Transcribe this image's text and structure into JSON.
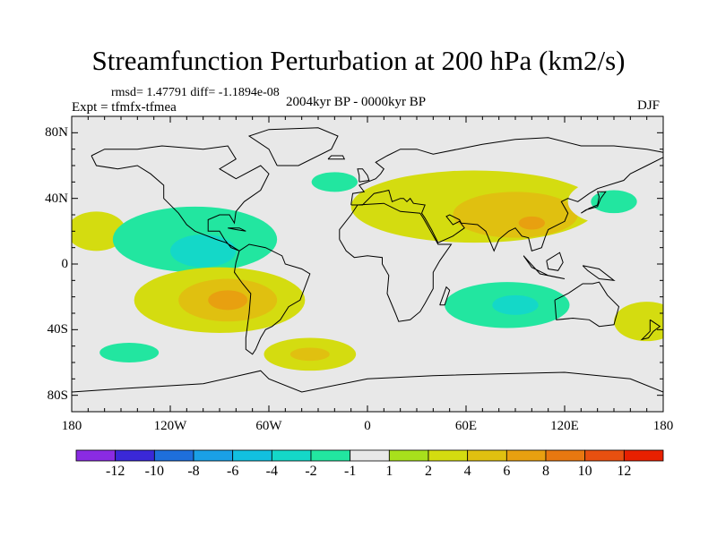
{
  "title": "Streamfunction Perturbation at 200 hPa (km2/s)",
  "stats_line": "rmsd= 1.47791 diff= -1.1894e-08",
  "expt_line": "Expt = tfmfx-tfmea",
  "period_line": "2004kyr BP - 0000kyr BP",
  "season": "DJF",
  "axes": {
    "x_ticks": [
      {
        "value": -180,
        "label": "180"
      },
      {
        "value": -120,
        "label": "120W"
      },
      {
        "value": -60,
        "label": "60W"
      },
      {
        "value": 0,
        "label": "0"
      },
      {
        "value": 60,
        "label": "60E"
      },
      {
        "value": 120,
        "label": "120E"
      },
      {
        "value": 180,
        "label": "180"
      }
    ],
    "y_ticks": [
      {
        "value": 80,
        "label": "80N"
      },
      {
        "value": 40,
        "label": "40N"
      },
      {
        "value": 0,
        "label": "0"
      },
      {
        "value": -40,
        "label": "40S"
      },
      {
        "value": -80,
        "label": "80S"
      }
    ],
    "lon_range": [
      -180,
      180
    ],
    "lat_range": [
      -90,
      90
    ]
  },
  "colorbar": {
    "colors": [
      "#8a2be2",
      "#3a28d8",
      "#1e6fdc",
      "#1aa0e6",
      "#12c0e0",
      "#14d8c8",
      "#22e6a0",
      "#e8e8e8",
      "#a8e01c",
      "#d4dc10",
      "#e0c010",
      "#e8a010",
      "#e87810",
      "#e85010",
      "#e82000"
    ],
    "labels": [
      "-12",
      "-10",
      "-8",
      "-6",
      "-4",
      "-2",
      "-1",
      "1",
      "2",
      "4",
      "6",
      "8",
      "10",
      "12"
    ]
  },
  "chart_data": {
    "type": "heatmap",
    "map_type": "global contour map, cylindrical equidistant projection, with continental outlines",
    "title": "Streamfunction Perturbation at 200 hPa (km2/s)",
    "variable": "Streamfunction Perturbation at 200 hPa",
    "units": "km2/s",
    "season": "DJF",
    "period": "2004kyr BP - 0000kyr BP",
    "experiment": "tfmfx-tfmea",
    "rmsd": 1.47791,
    "diff": -1.1894e-08,
    "contour_levels": [
      -12,
      -10,
      -8,
      -6,
      -4,
      -2,
      -1,
      1,
      2,
      4,
      6,
      8,
      10,
      12
    ],
    "x_range_deg": [
      -180,
      180
    ],
    "y_range_deg": [
      -90,
      90
    ],
    "anomaly_centers": [
      {
        "lon": -165,
        "lat": 20,
        "rx": 18,
        "ry": 12,
        "value": 2
      },
      {
        "lon": -105,
        "lat": 15,
        "rx": 50,
        "ry": 20,
        "value": -2
      },
      {
        "lon": -100,
        "lat": 8,
        "rx": 20,
        "ry": 10,
        "value": -4
      },
      {
        "lon": -90,
        "lat": -22,
        "rx": 52,
        "ry": 20,
        "value": 2
      },
      {
        "lon": -85,
        "lat": -22,
        "rx": 30,
        "ry": 13,
        "value": 4
      },
      {
        "lon": -85,
        "lat": -22,
        "rx": 12,
        "ry": 6,
        "value": 6
      },
      {
        "lon": -18,
        "lat": -12,
        "rx": 14,
        "ry": 5,
        "value": -1
      },
      {
        "lon": -20,
        "lat": 47,
        "rx": 38,
        "ry": 14,
        "value": -1
      },
      {
        "lon": -20,
        "lat": 50,
        "rx": 14,
        "ry": 6,
        "value": -2
      },
      {
        "lon": 25,
        "lat": 20,
        "rx": 30,
        "ry": 9,
        "value": -1
      },
      {
        "lon": 65,
        "lat": 35,
        "rx": 75,
        "ry": 22,
        "value": 2
      },
      {
        "lon": 90,
        "lat": 30,
        "rx": 38,
        "ry": 14,
        "value": 4
      },
      {
        "lon": 100,
        "lat": 25,
        "rx": 8,
        "ry": 4,
        "value": 6
      },
      {
        "lon": 150,
        "lat": 38,
        "rx": 28,
        "ry": 14,
        "value": -1
      },
      {
        "lon": 150,
        "lat": 38,
        "rx": 14,
        "ry": 7,
        "value": -2
      },
      {
        "lon": 85,
        "lat": -25,
        "rx": 75,
        "ry": 22,
        "value": -1
      },
      {
        "lon": 85,
        "lat": -25,
        "rx": 38,
        "ry": 14,
        "value": -2
      },
      {
        "lon": 90,
        "lat": -25,
        "rx": 14,
        "ry": 6,
        "value": -4
      },
      {
        "lon": 170,
        "lat": -35,
        "rx": 20,
        "ry": 12,
        "value": 2
      },
      {
        "lon": -145,
        "lat": -54,
        "rx": 35,
        "ry": 12,
        "value": -1
      },
      {
        "lon": -145,
        "lat": -54,
        "rx": 18,
        "ry": 6,
        "value": -2
      },
      {
        "lon": -35,
        "lat": -55,
        "rx": 28,
        "ry": 10,
        "value": 2
      },
      {
        "lon": -35,
        "lat": -55,
        "rx": 12,
        "ry": 4,
        "value": 4
      },
      {
        "lon": 175,
        "lat": -62,
        "rx": 12,
        "ry": 8,
        "value": -1
      }
    ]
  }
}
